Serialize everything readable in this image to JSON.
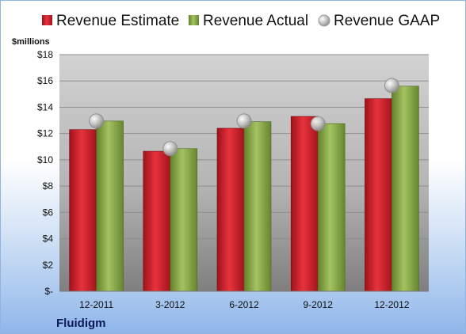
{
  "chart_data": {
    "type": "bar",
    "company": "Fluidigm",
    "y_unit": "$millions",
    "categories": [
      "12-2011",
      "3-2012",
      "6-2012",
      "9-2012",
      "12-2012"
    ],
    "series": [
      {
        "name": "Revenue Estimate",
        "kind": "bar",
        "color": "#cc1f2a",
        "values": [
          12.3,
          10.65,
          12.4,
          13.3,
          14.65
        ]
      },
      {
        "name": "Revenue Actual",
        "kind": "bar",
        "color": "#8cad4a",
        "values": [
          12.95,
          10.85,
          12.9,
          12.75,
          15.6
        ]
      },
      {
        "name": "Revenue GAAP",
        "kind": "marker",
        "color": "#b8b8b8",
        "values": [
          12.95,
          10.85,
          12.95,
          12.75,
          15.65
        ]
      }
    ],
    "ylim": [
      0,
      18
    ],
    "y_ticks": [
      0,
      2,
      4,
      6,
      8,
      10,
      12,
      14,
      16,
      18
    ],
    "y_tick_labels": [
      "$-",
      "$2",
      "$4",
      "$6",
      "$8",
      "$10",
      "$12",
      "$14",
      "$16",
      "$18"
    ],
    "grid": true,
    "legend_position": "top"
  }
}
